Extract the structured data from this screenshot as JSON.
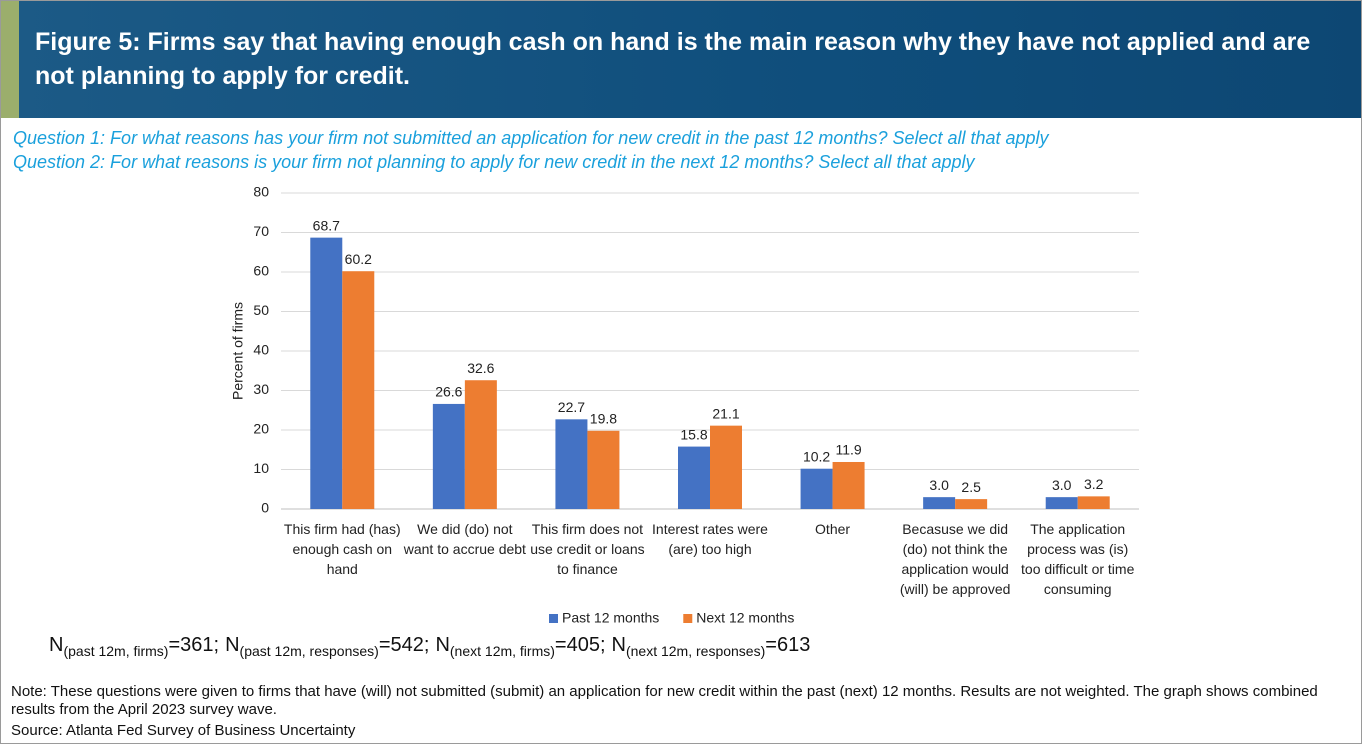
{
  "header": {
    "title": "Figure 5: Firms say that having enough cash on hand is the main reason why they have not applied and are not planning to apply for credit."
  },
  "questions": [
    "Question 1: For what reasons has your firm not submitted an application for new credit in the past 12 months? Select all that apply",
    "Question 2: For what reasons is your firm not planning to apply for new credit in the next 12 months? Select all that apply"
  ],
  "chart_data": {
    "type": "bar",
    "y_label": "Percent of firms",
    "categories": [
      "This firm had (has) enough cash on hand",
      "We did (do) not want to accrue debt",
      "This firm does not use credit or loans to finance",
      "Interest rates were (are) too high",
      "Other",
      "Becasuse we did (do) not think the application would (will) be approved",
      "The application process was (is) too difficult or time consuming"
    ],
    "series": [
      {
        "name": "Past 12 months",
        "color": "#4472c4",
        "values": [
          68.7,
          26.6,
          22.7,
          15.8,
          10.2,
          3.0,
          3.0
        ],
        "value_labels": [
          "68.7",
          "26.6",
          "22.7",
          "15.8",
          "10.2",
          "3.0",
          "3.0"
        ]
      },
      {
        "name": "Next 12 months",
        "color": "#ed7d31",
        "values": [
          60.2,
          32.6,
          19.8,
          21.1,
          11.9,
          2.5,
          3.2
        ],
        "value_labels": [
          "60.2",
          "32.6",
          "19.8",
          "21.1",
          "11.9",
          "2.5",
          "3.2"
        ]
      }
    ],
    "ylim": [
      0,
      80
    ],
    "yticks": [
      0,
      10,
      20,
      30,
      40,
      50,
      60,
      70,
      80
    ],
    "grid": true,
    "legend": "bottom"
  },
  "n_line": [
    {
      "main": "N",
      "sub": "(past 12m, firms)",
      "rest": "=361;"
    },
    {
      "main": "N",
      "sub": "(past 12m, responses)",
      "rest": "=542;"
    },
    {
      "main": "N",
      "sub": "(next 12m, firms)",
      "rest": "=405;"
    },
    {
      "main": "N",
      "sub": "(next 12m, responses)",
      "rest": "=613"
    }
  ],
  "note": "Note: These questions were given to firms that have (will) not submitted (submit) an application for new credit within the past (next) 12 months. Results are not weighted. The graph shows combined results from the April 2023 survey wave.",
  "source": "Source: Atlanta Fed Survey of Business Uncertainty"
}
